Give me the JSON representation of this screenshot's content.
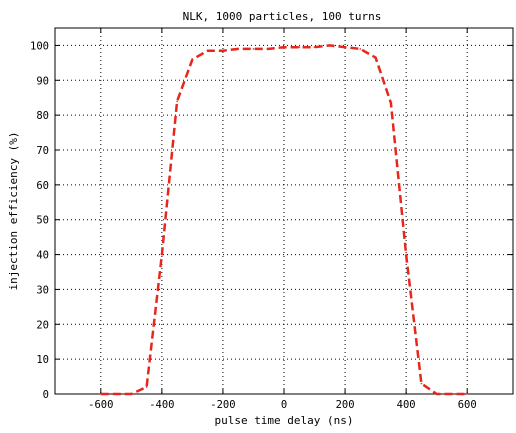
{
  "chart_data": {
    "type": "line",
    "title": "NLK, 1000 particles, 100 turns",
    "xlabel": "pulse time delay (ns)",
    "ylabel": "injection efficiency (%)",
    "xlim": [
      -750,
      750
    ],
    "ylim": [
      0,
      105
    ],
    "xticks": [
      -600,
      -400,
      -200,
      0,
      200,
      400,
      600
    ],
    "yticks": [
      0,
      10,
      20,
      30,
      40,
      50,
      60,
      70,
      80,
      90,
      100
    ],
    "grid": true,
    "line_style": "dashed",
    "marker": "none",
    "series": [
      {
        "color": "#e8261c",
        "x": [
          -600,
          -550,
          -500,
          -450,
          -400,
          -350,
          -300,
          -250,
          -200,
          -150,
          -100,
          -50,
          0,
          50,
          100,
          150,
          200,
          250,
          300,
          350,
          400,
          450,
          500,
          550,
          600
        ],
        "y": [
          0,
          0,
          0,
          2,
          40,
          84,
          96,
          98.5,
          98.5,
          99,
          99,
          99,
          99.5,
          99.5,
          99.5,
          100,
          99.5,
          99,
          96.5,
          83.5,
          40,
          3,
          0,
          0,
          0
        ]
      }
    ]
  }
}
